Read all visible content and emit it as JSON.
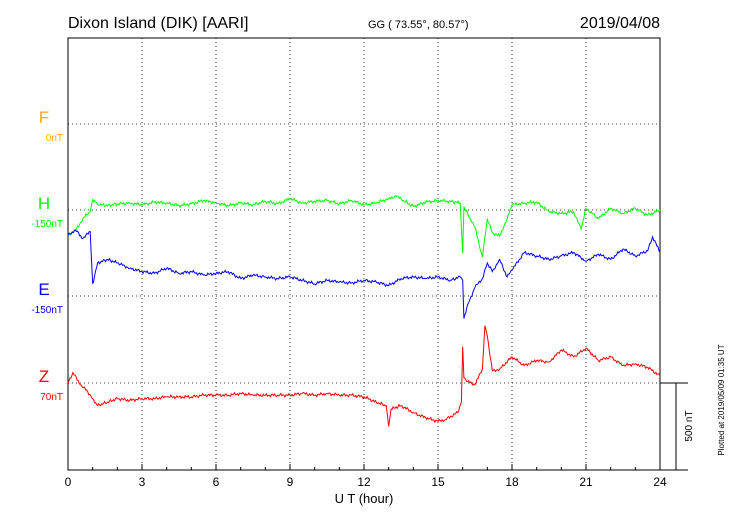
{
  "header": {
    "station": "Dixon Island (DIK)  [AARI]",
    "coords": "GG ( 73.55°,  80.57°)",
    "date": "2019/04/08"
  },
  "side_note": "Plotted at 2019/05/09 01:35 UT",
  "colors": {
    "F": "#ffaa00",
    "H": "#00ff00",
    "E": "#0000ff",
    "Z": "#ff0000",
    "grid": "#000000"
  },
  "chart_data": {
    "type": "line",
    "xlabel": "U T (hour)",
    "xlim": [
      0,
      24
    ],
    "xticks": [
      0,
      3,
      6,
      9,
      12,
      15,
      18,
      21,
      24
    ],
    "xtick_labels": [
      "0",
      "3",
      "6",
      "9",
      "12",
      "15",
      "18",
      "21",
      "24"
    ],
    "scale_bar": {
      "label": "500 nT",
      "value": 500
    },
    "channels": [
      {
        "name": "F",
        "baseline_label": "0nT",
        "baseline": 0
      },
      {
        "name": "H",
        "baseline_label": "-150nT",
        "baseline": -150
      },
      {
        "name": "E",
        "baseline_label": "-150nT",
        "baseline": -150
      },
      {
        "name": "Z",
        "baseline_label": "70nT",
        "baseline": 70
      }
    ],
    "series": [
      {
        "name": "H",
        "unit": "nT",
        "x": [
          0,
          0.3,
          0.6,
          0.9,
          1.0,
          1.2,
          1.6,
          2.0,
          2.5,
          3.0,
          3.5,
          4.0,
          4.5,
          5.0,
          5.5,
          6.0,
          6.5,
          7.0,
          7.5,
          8.0,
          8.5,
          9.0,
          9.5,
          10.0,
          10.5,
          11.0,
          11.5,
          12.0,
          12.5,
          13.0,
          13.3,
          13.6,
          14.0,
          14.5,
          15.0,
          15.5,
          15.9,
          16.0,
          16.05,
          16.2,
          16.5,
          16.8,
          17.0,
          17.2,
          17.5,
          17.8,
          18.0,
          18.5,
          19.0,
          19.5,
          20.0,
          20.5,
          20.8,
          21.0,
          21.5,
          22.0,
          22.5,
          23.0,
          23.5,
          24.0
        ],
        "values": [
          -290,
          -270,
          -200,
          -160,
          -90,
          -115,
          -125,
          -115,
          -110,
          -120,
          -105,
          -110,
          -125,
          -115,
          -95,
          -110,
          -125,
          -110,
          -120,
          -100,
          -115,
          -85,
          -110,
          -100,
          -95,
          -115,
          -95,
          -120,
          -110,
          -85,
          -70,
          -95,
          -130,
          -105,
          -95,
          -100,
          -110,
          -400,
          -130,
          -170,
          -250,
          -420,
          -200,
          -280,
          -300,
          -200,
          -120,
          -110,
          -105,
          -160,
          -170,
          -160,
          -260,
          -140,
          -200,
          -140,
          -170,
          -140,
          -180,
          -150
        ]
      },
      {
        "name": "E",
        "unit": "nT",
        "x": [
          0,
          0.3,
          0.6,
          0.9,
          1.0,
          1.2,
          1.6,
          2.0,
          2.5,
          3.0,
          3.5,
          4.0,
          4.5,
          5.0,
          5.5,
          6.0,
          6.5,
          7.0,
          7.5,
          8.0,
          8.5,
          9.0,
          9.5,
          10.0,
          10.5,
          11.0,
          11.5,
          12.0,
          12.5,
          13.0,
          13.5,
          14.0,
          14.5,
          15.0,
          15.5,
          15.9,
          16.0,
          16.05,
          16.2,
          16.5,
          16.8,
          17.0,
          17.2,
          17.5,
          17.8,
          18.0,
          18.5,
          19.0,
          19.5,
          20.0,
          20.5,
          21.0,
          21.5,
          22.0,
          22.5,
          23.0,
          23.5,
          23.7,
          24.0
        ],
        "values": [
          200,
          230,
          180,
          220,
          -80,
          40,
          60,
          40,
          10,
          -10,
          -20,
          10,
          -20,
          -10,
          -30,
          -20,
          -10,
          -50,
          -30,
          -40,
          -50,
          -40,
          -60,
          -80,
          -60,
          -70,
          -75,
          -60,
          -70,
          -90,
          -50,
          -40,
          -50,
          -40,
          -60,
          -40,
          -60,
          -280,
          -200,
          -100,
          -50,
          40,
          -10,
          60,
          -40,
          0,
          100,
          80,
          60,
          80,
          100,
          50,
          90,
          60,
          120,
          80,
          110,
          190,
          100
        ]
      },
      {
        "name": "Z",
        "unit": "nT",
        "x": [
          0,
          0.2,
          0.5,
          0.8,
          1.0,
          1.2,
          1.6,
          2.0,
          2.5,
          3.0,
          3.5,
          4.0,
          4.5,
          5.0,
          5.5,
          6.0,
          6.5,
          7.0,
          7.5,
          8.0,
          8.5,
          9.0,
          9.5,
          10.0,
          10.5,
          11.0,
          11.5,
          12.0,
          12.5,
          12.9,
          13.0,
          13.1,
          13.5,
          14.0,
          14.5,
          15.0,
          15.3,
          15.8,
          15.95,
          16.0,
          16.05,
          16.2,
          16.5,
          16.8,
          16.9,
          17.0,
          17.2,
          17.5,
          18.0,
          18.5,
          19.0,
          19.5,
          20.0,
          20.5,
          21.0,
          21.5,
          22.0,
          22.5,
          23.0,
          23.5,
          24.0
        ],
        "values": [
          70,
          130,
          60,
          20,
          -20,
          -60,
          -40,
          -20,
          -30,
          -20,
          -20,
          -10,
          -10,
          -10,
          0,
          0,
          0,
          10,
          0,
          0,
          0,
          0,
          10,
          0,
          10,
          0,
          0,
          -10,
          -40,
          -60,
          -180,
          -80,
          -60,
          -100,
          -130,
          -150,
          -140,
          -100,
          -40,
          280,
          100,
          80,
          60,
          150,
          400,
          340,
          140,
          150,
          220,
          170,
          200,
          190,
          260,
          220,
          270,
          200,
          220,
          170,
          180,
          160,
          110
        ]
      }
    ]
  }
}
